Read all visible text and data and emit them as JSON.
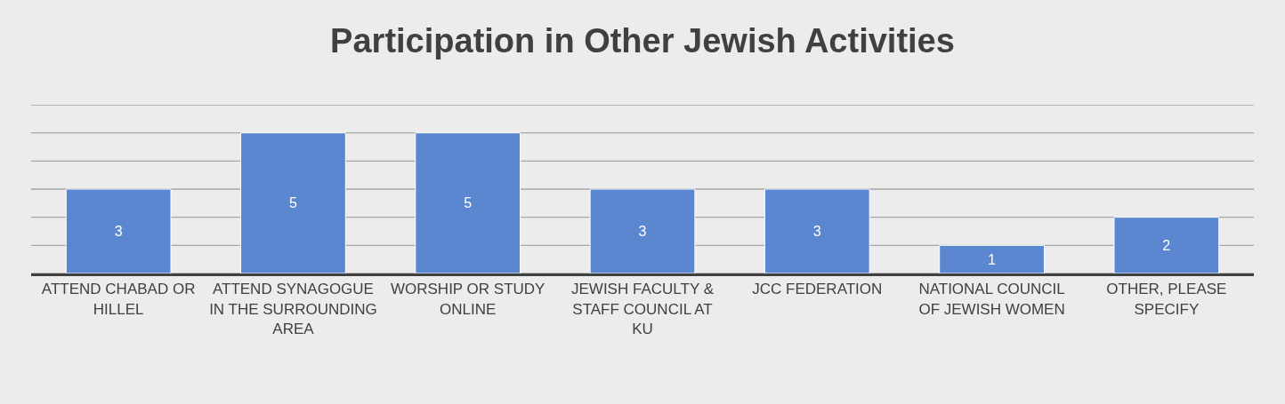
{
  "chart_data": {
    "type": "bar",
    "title": "Participation in Other Jewish Activities",
    "categories": [
      "ATTEND CHABAD OR HILLEL",
      "ATTEND SYNAGOGUE IN THE SURROUNDING AREA",
      "WORSHIP OR STUDY ONLINE",
      "JEWISH FACULTY & STAFF COUNCIL AT KU",
      "JCC FEDERATION",
      "NATIONAL COUNCIL OF JEWISH WOMEN",
      "OTHER, PLEASE SPECIFY"
    ],
    "values": [
      3,
      5,
      5,
      3,
      3,
      1,
      2
    ],
    "color": "#5b86d0",
    "ylim": [
      0,
      6
    ],
    "yticks": [
      {
        "value": 0,
        "label": null
      },
      {
        "value": 1,
        "label": null
      },
      {
        "value": 2,
        "label": null
      },
      {
        "value": 3,
        "label": null
      },
      {
        "value": 4,
        "label": null
      },
      {
        "value": 5,
        "label": null
      },
      {
        "value": 6,
        "label": null
      }
    ],
    "grid": "y",
    "data_labels": true,
    "tick_labels": "x"
  }
}
